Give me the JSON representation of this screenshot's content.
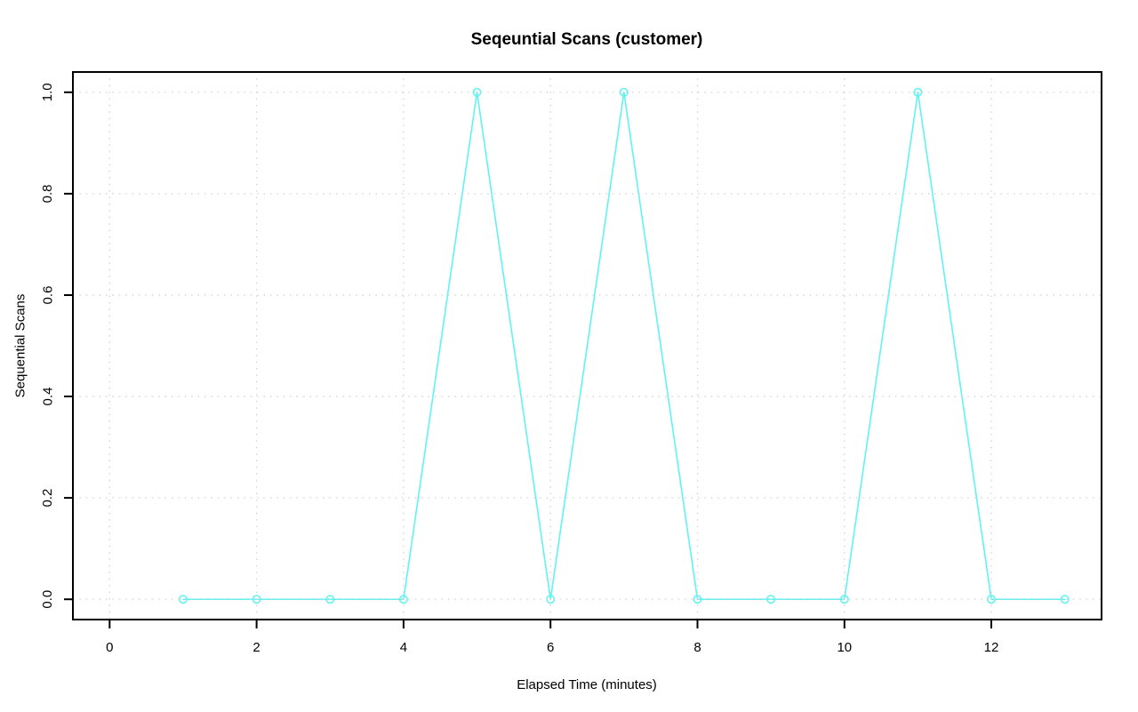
{
  "chart_data": {
    "type": "line",
    "title": "Seqeuntial Scans (customer)",
    "xlabel": "Elapsed Time (minutes)",
    "ylabel": "Sequential Scans",
    "x": [
      1,
      2,
      3,
      4,
      5,
      6,
      7,
      8,
      9,
      10,
      11,
      12,
      13
    ],
    "y": [
      0,
      0,
      0,
      0,
      1,
      0,
      1,
      0,
      0,
      0,
      1,
      0,
      0
    ],
    "xlim": [
      -0.5,
      13.5
    ],
    "ylim": [
      -0.04,
      1.04
    ],
    "xticks": {
      "values": [
        0,
        2,
        4,
        6,
        8,
        10,
        12
      ],
      "labels": [
        "0",
        "2",
        "4",
        "6",
        "8",
        "10",
        "12"
      ]
    },
    "yticks": {
      "values": [
        0,
        0.2,
        0.4,
        0.6,
        0.8,
        1
      ],
      "labels": [
        "0.0",
        "0.2",
        "0.4",
        "0.6",
        "0.8",
        "1.0"
      ]
    },
    "grid": true,
    "grid_style": "dotted",
    "legend": "none",
    "marker": "open-circle",
    "colors": {
      "line": "#62f3f1",
      "marker": "#62f3f1",
      "grid": "#d2d2d2",
      "axis": "#000000",
      "text": "#000000",
      "background": "#ffffff"
    }
  }
}
